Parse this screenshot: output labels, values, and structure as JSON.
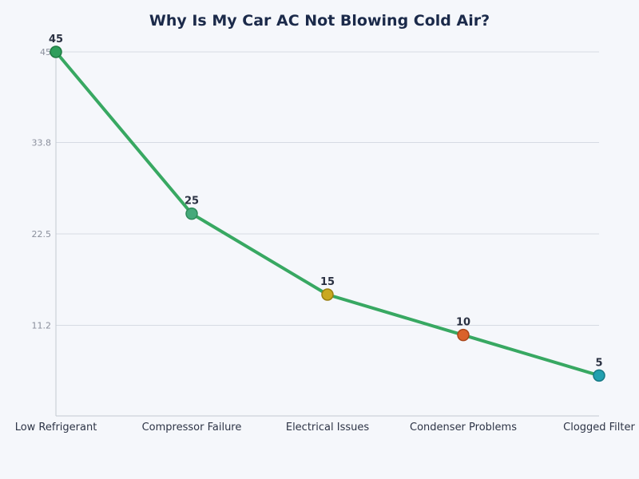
{
  "chart_data": {
    "type": "line",
    "title": "Why Is My Car AC Not Blowing Cold Air?",
    "xlabel": "",
    "ylabel": "",
    "categories": [
      "Low Refrigerant",
      "Compressor Failure",
      "Electrical Issues",
      "Condenser Problems",
      "Clogged Filter"
    ],
    "values": [
      45,
      25,
      15,
      10,
      5
    ],
    "data_labels": [
      "45",
      "25",
      "15",
      "10",
      "5"
    ],
    "ylim": [
      0,
      45
    ],
    "yticks": [
      11.2,
      22.5,
      33.8,
      45
    ],
    "ytick_labels": [
      "11.2",
      "22.5",
      "33.8",
      "45"
    ],
    "grid": true,
    "line_color": "#38a862",
    "point_colors": [
      "#2e9e5b",
      "#45a97a",
      "#c9a820",
      "#d9622b",
      "#22a0b0"
    ],
    "point_border_colors": [
      "#1f7a42",
      "#2e8a5a",
      "#9a7f10",
      "#a9461a",
      "#167884"
    ]
  }
}
